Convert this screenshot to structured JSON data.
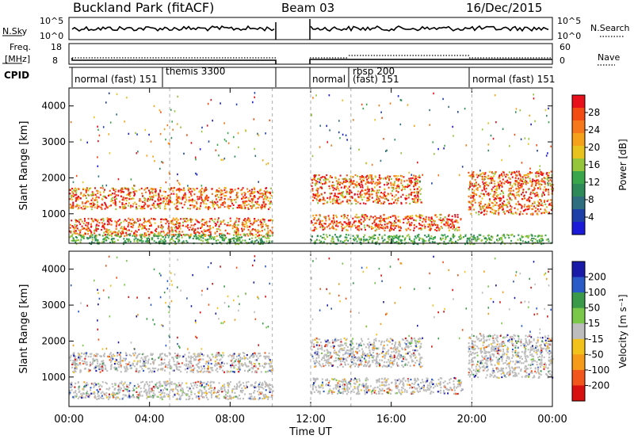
{
  "header": {
    "title": "Buckland Park (fitACF)",
    "beam": "Beam 03",
    "date": "16/Dec/2015"
  },
  "strips": {
    "nsky_label": "N.Sky",
    "nsky_top_tick": "10^5",
    "nsky_bottom_tick": "10^0",
    "nsearch_label": "N.Search",
    "freq_label_line1": "Freq.",
    "freq_label_line2": "[MHz]",
    "freq_ticks": [
      "18",
      "8"
    ],
    "nave_ticks": [
      "60",
      "0"
    ],
    "nave_label": "Nave",
    "cpid_label": "CPID",
    "cpid_segments": [
      "normal (fast) 151",
      "themis 3300",
      "normal",
      "rbsp 200",
      "(fast) 151",
      "normal (fast) 151"
    ]
  },
  "chart_data": [
    {
      "type": "heatmap",
      "quantity": "Power",
      "ylabel": "Slant Range [km]",
      "yticks": [
        1000,
        2000,
        3000,
        4000
      ],
      "ylim": [
        180,
        4500
      ],
      "xlim": [
        0,
        24
      ],
      "xticks": [
        "00:00",
        "04:00",
        "08:00",
        "12:00",
        "16:00",
        "20:00",
        "00:00"
      ],
      "data_gap_hours": [
        10.1,
        12.0
      ],
      "colorbar": {
        "label": "Power [dB]",
        "tick_labels": [
          "28",
          "24",
          "20",
          "16",
          "12",
          "8",
          "4"
        ],
        "colors": [
          "#e8101a",
          "#f24c12",
          "#f6781a",
          "#f5a21a",
          "#e8c31e",
          "#94c53a",
          "#3aa64c",
          "#2f8a5a",
          "#2f6e7e",
          "#1f3fa8",
          "#1a1ad8"
        ]
      },
      "echo_bands": [
        {
          "t_start": 0.0,
          "t_end": 10.1,
          "range_low": 1150,
          "range_high": 1750,
          "level": "strong"
        },
        {
          "t_start": 0.0,
          "t_end": 10.1,
          "range_low": 400,
          "range_high": 900,
          "level": "strong"
        },
        {
          "t_start": 12.0,
          "t_end": 17.5,
          "range_low": 1300,
          "range_high": 2100,
          "level": "strong"
        },
        {
          "t_start": 12.0,
          "t_end": 19.5,
          "range_low": 550,
          "range_high": 1000,
          "level": "strong"
        },
        {
          "t_start": 19.8,
          "t_end": 24.0,
          "range_low": 1000,
          "range_high": 2200,
          "level": "strong"
        },
        {
          "t_start": 0.0,
          "t_end": 24.0,
          "range_low": 180,
          "range_high": 450,
          "level": "weak"
        }
      ]
    },
    {
      "type": "heatmap",
      "quantity": "Velocity",
      "ylabel": "Slant Range [km]",
      "yticks": [
        1000,
        2000,
        3000,
        4000
      ],
      "ylim": [
        180,
        4500
      ],
      "xlim": [
        0,
        24
      ],
      "xlabel": "Time UT",
      "xticks": [
        "00:00",
        "04:00",
        "08:00",
        "12:00",
        "16:00",
        "20:00",
        "00:00"
      ],
      "data_gap_hours": [
        10.1,
        12.0
      ],
      "colorbar": {
        "label": "Velocity [m s⁻¹]",
        "tick_labels": [
          "200",
          "100",
          "50",
          "15",
          "-15",
          "-50",
          "-100",
          "-200"
        ],
        "colors": [
          "#1a1aa8",
          "#2a5ac8",
          "#3a9a4a",
          "#7ac84a",
          "#bdbdbd",
          "#f2c21a",
          "#f69a1a",
          "#f2561a",
          "#d81010"
        ]
      },
      "echo_bands": [
        {
          "t_start": 0.0,
          "t_end": 10.1,
          "range_low": 1150,
          "range_high": 1700,
          "level": "ground"
        },
        {
          "t_start": 0.0,
          "t_end": 10.1,
          "range_low": 400,
          "range_high": 900,
          "level": "ground"
        },
        {
          "t_start": 12.0,
          "t_end": 17.5,
          "range_low": 1300,
          "range_high": 2100,
          "level": "ground"
        },
        {
          "t_start": 12.0,
          "t_end": 19.5,
          "range_low": 550,
          "range_high": 1000,
          "level": "ground"
        },
        {
          "t_start": 19.8,
          "t_end": 24.0,
          "range_low": 1000,
          "range_high": 2200,
          "level": "ground"
        }
      ]
    }
  ]
}
